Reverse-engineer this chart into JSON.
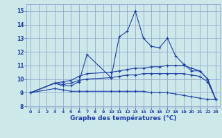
{
  "x": [
    0,
    1,
    2,
    3,
    4,
    5,
    6,
    7,
    8,
    9,
    10,
    11,
    12,
    13,
    14,
    15,
    16,
    17,
    18,
    19,
    20,
    21,
    22,
    23
  ],
  "line_main": [
    9.0,
    null,
    null,
    9.7,
    9.5,
    9.5,
    9.8,
    11.8,
    null,
    null,
    10.1,
    13.1,
    13.5,
    15.0,
    13.0,
    12.4,
    12.3,
    13.0,
    11.7,
    11.1,
    10.6,
    10.6,
    10.0,
    8.5
  ],
  "line_upper": [
    9.0,
    null,
    null,
    9.7,
    9.8,
    9.9,
    10.2,
    10.4,
    null,
    null,
    10.5,
    10.6,
    10.7,
    10.8,
    10.8,
    10.9,
    10.9,
    11.0,
    11.0,
    11.0,
    10.8,
    10.6,
    10.0,
    8.5
  ],
  "line_mid": [
    9.0,
    null,
    null,
    9.7,
    9.6,
    9.7,
    9.9,
    10.0,
    null,
    null,
    10.1,
    10.2,
    10.3,
    10.3,
    10.4,
    10.4,
    10.4,
    10.4,
    10.4,
    10.4,
    10.3,
    10.2,
    9.8,
    8.5
  ],
  "line_lower": [
    9.0,
    null,
    null,
    9.3,
    9.2,
    9.1,
    9.1,
    9.1,
    null,
    null,
    9.1,
    9.1,
    9.1,
    9.1,
    9.1,
    9.0,
    9.0,
    9.0,
    8.9,
    8.8,
    8.7,
    8.6,
    8.5,
    8.5
  ],
  "xlim": [
    -0.5,
    23.5
  ],
  "ylim": [
    7.9,
    15.5
  ],
  "yticks": [
    8,
    9,
    10,
    11,
    12,
    13,
    14,
    15
  ],
  "xticks": [
    0,
    1,
    2,
    3,
    4,
    5,
    6,
    7,
    8,
    9,
    10,
    11,
    12,
    13,
    14,
    15,
    16,
    17,
    18,
    19,
    20,
    21,
    22,
    23
  ],
  "xlabel": "Graphe des températures (°C)",
  "line_color": "#1a3caa",
  "bg_color": "#cce8e8",
  "grid_color": "#8899cc"
}
